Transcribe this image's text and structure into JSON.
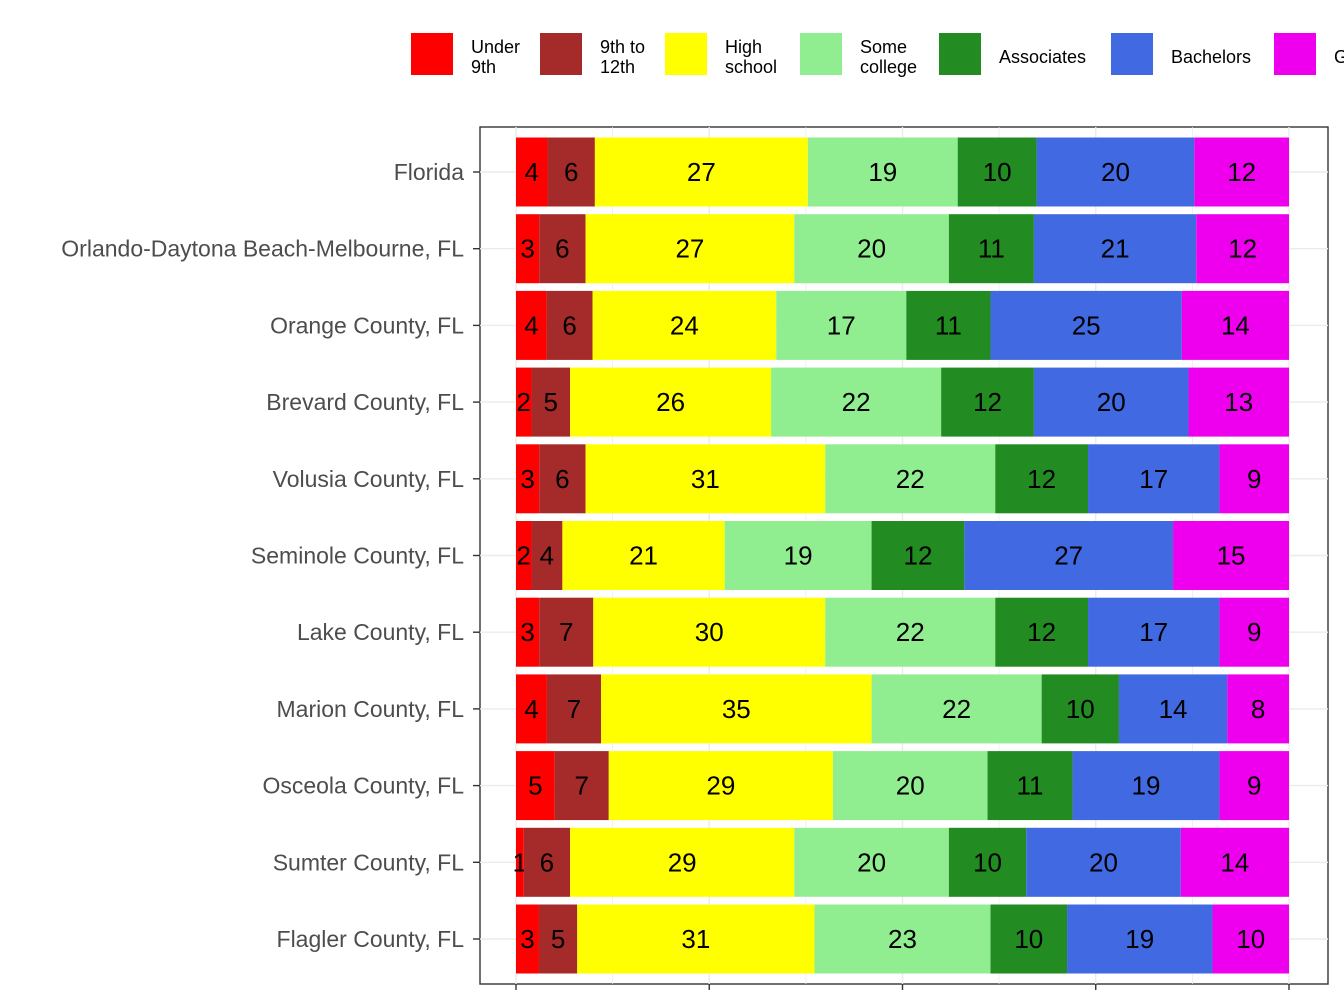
{
  "chart_data": {
    "type": "bar",
    "orientation": "horizontal",
    "stacked": true,
    "normalized": true,
    "grid": true,
    "legend_position": "top",
    "title": "",
    "xlabel": "",
    "ylabel": "",
    "categories": [
      "Florida",
      "Orlando-Daytona Beach-Melbourne, FL",
      "Orange County, FL",
      "Brevard County, FL",
      "Volusia County, FL",
      "Seminole County, FL",
      "Lake County, FL",
      "Marion County, FL",
      "Osceola County, FL",
      "Sumter County, FL",
      "Flagler County, FL"
    ],
    "series": [
      {
        "name": "Under\n9th",
        "color": "#ff0000",
        "values": [
          4,
          3,
          4,
          2,
          3,
          2,
          3,
          4,
          5,
          1,
          3
        ]
      },
      {
        "name": "9th to\n12th",
        "color": "#a52a2a",
        "values": [
          6,
          6,
          6,
          5,
          6,
          4,
          7,
          7,
          7,
          6,
          5
        ]
      },
      {
        "name": "High\nschool",
        "color": "#ffff00",
        "values": [
          27,
          27,
          24,
          26,
          31,
          21,
          30,
          35,
          29,
          29,
          31
        ]
      },
      {
        "name": "Some\ncollege",
        "color": "#90ee90",
        "values": [
          19,
          20,
          17,
          22,
          22,
          19,
          22,
          22,
          20,
          20,
          23
        ]
      },
      {
        "name": "Associates",
        "color": "#228b22",
        "values": [
          10,
          11,
          11,
          12,
          12,
          12,
          12,
          10,
          11,
          10,
          10
        ]
      },
      {
        "name": "Bachelors",
        "color": "#4169e1",
        "values": [
          20,
          21,
          25,
          20,
          17,
          27,
          17,
          14,
          19,
          20,
          19
        ]
      },
      {
        "name": "G",
        "color": "#ee00ee",
        "values": [
          12,
          12,
          14,
          13,
          9,
          15,
          9,
          8,
          9,
          14,
          10
        ]
      }
    ]
  }
}
